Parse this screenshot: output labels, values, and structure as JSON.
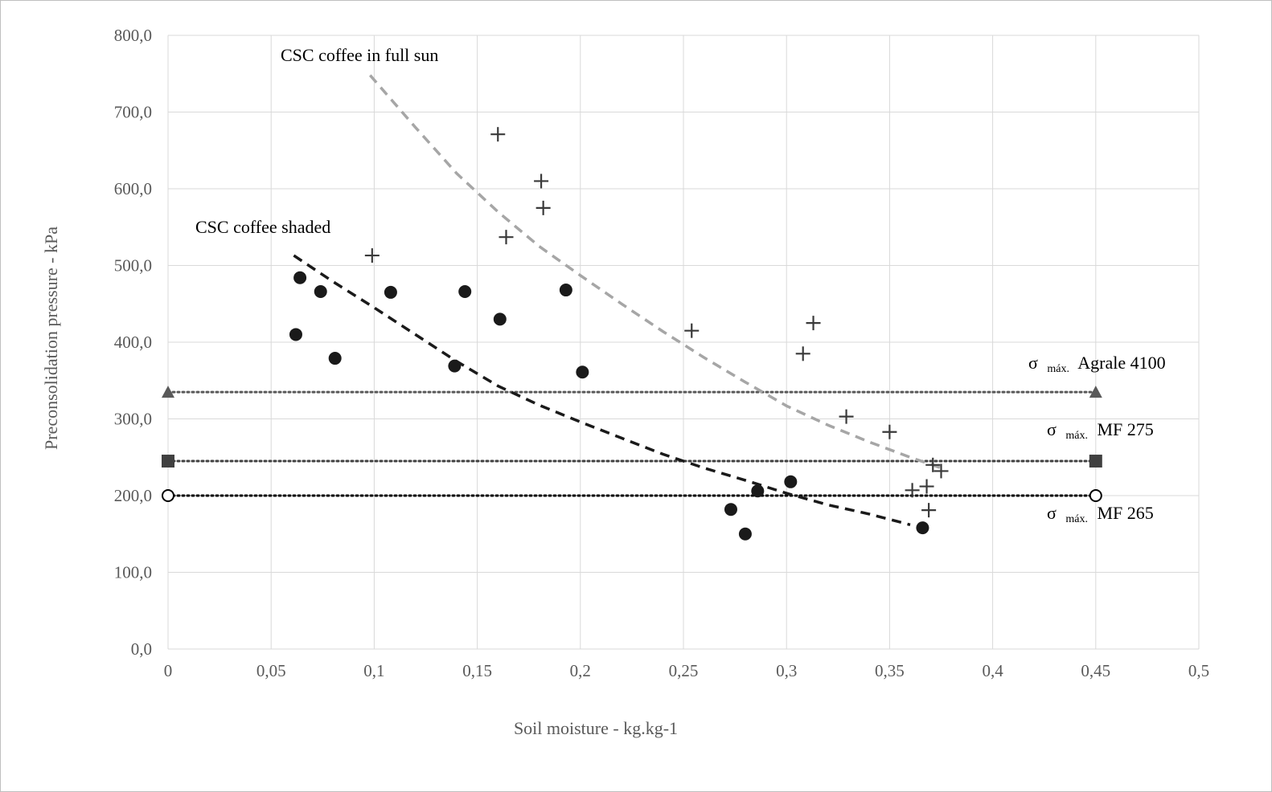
{
  "chart_data": {
    "type": "scatter",
    "xlabel": "Soil moisture - kg.kg-1",
    "ylabel": "Preconsolidation pressure - kPa",
    "xlim": [
      0,
      0.5
    ],
    "ylim": [
      0,
      800
    ],
    "x_ticks": [
      "0",
      "0,05",
      "0,1",
      "0,15",
      "0,2",
      "0,25",
      "0,3",
      "0,35",
      "0,4",
      "0,45",
      "0,5"
    ],
    "y_ticks": [
      "0,0",
      "100,0",
      "200,0",
      "300,0",
      "400,0",
      "500,0",
      "600,0",
      "700,0",
      "800,0"
    ],
    "grid": true,
    "series": [
      {
        "marker": "circle",
        "color": "#1a1a1a",
        "points": [
          [
            0.062,
            410
          ],
          [
            0.064,
            484
          ],
          [
            0.074,
            466
          ],
          [
            0.081,
            379
          ],
          [
            0.108,
            465
          ],
          [
            0.139,
            369
          ],
          [
            0.144,
            466
          ],
          [
            0.161,
            430
          ],
          [
            0.193,
            468
          ],
          [
            0.201,
            361
          ],
          [
            0.273,
            182
          ],
          [
            0.28,
            150
          ],
          [
            0.286,
            206
          ],
          [
            0.302,
            218
          ],
          [
            0.366,
            158
          ]
        ]
      },
      {
        "marker": "plus",
        "color": "#3a3a3a",
        "points": [
          [
            0.099,
            513
          ],
          [
            0.16,
            671
          ],
          [
            0.164,
            537
          ],
          [
            0.181,
            610
          ],
          [
            0.182,
            575
          ],
          [
            0.254,
            415
          ],
          [
            0.308,
            385
          ],
          [
            0.313,
            425
          ],
          [
            0.329,
            303
          ],
          [
            0.35,
            283
          ],
          [
            0.361,
            207
          ],
          [
            0.368,
            212
          ],
          [
            0.369,
            181
          ],
          [
            0.371,
            240
          ],
          [
            0.375,
            232
          ]
        ]
      }
    ],
    "trendlines": [
      {
        "label": "CSC coffee in full sun",
        "color": "#a6a6a6",
        "dash": true,
        "points": [
          [
            0.098,
            748
          ],
          [
            0.12,
            680
          ],
          [
            0.14,
            620
          ],
          [
            0.16,
            570
          ],
          [
            0.18,
            525
          ],
          [
            0.2,
            487
          ],
          [
            0.22,
            450
          ],
          [
            0.24,
            414
          ],
          [
            0.26,
            380
          ],
          [
            0.28,
            348
          ],
          [
            0.3,
            317
          ],
          [
            0.32,
            292
          ],
          [
            0.34,
            270
          ],
          [
            0.36,
            250
          ],
          [
            0.375,
            236
          ]
        ]
      },
      {
        "label": "CSC coffee shaded",
        "color": "#1a1a1a",
        "dash": true,
        "points": [
          [
            0.061,
            513
          ],
          [
            0.08,
            479
          ],
          [
            0.1,
            445
          ],
          [
            0.12,
            410
          ],
          [
            0.14,
            375
          ],
          [
            0.16,
            343
          ],
          [
            0.18,
            318
          ],
          [
            0.2,
            296
          ],
          [
            0.22,
            275
          ],
          [
            0.24,
            254
          ],
          [
            0.26,
            236
          ],
          [
            0.28,
            220
          ],
          [
            0.3,
            203
          ],
          [
            0.32,
            188
          ],
          [
            0.34,
            176
          ],
          [
            0.36,
            162
          ]
        ]
      }
    ],
    "reference_lines": [
      {
        "symbol": "σ",
        "subscript": "máx.",
        "label": "Agrale 4100",
        "y": 335,
        "marker": "triangle",
        "color": "#595959",
        "line_color": "#595959"
      },
      {
        "symbol": "σ",
        "subscript": "máx.",
        "label": "MF 275",
        "y": 245,
        "marker": "square",
        "color": "#404040",
        "line_color": "#404040"
      },
      {
        "symbol": "σ",
        "subscript": "máx.",
        "label": "MF 265",
        "y": 200,
        "marker": "circle",
        "color": "#000000",
        "line_color": "#000000"
      }
    ],
    "reference_x": [
      0,
      0.45
    ]
  }
}
